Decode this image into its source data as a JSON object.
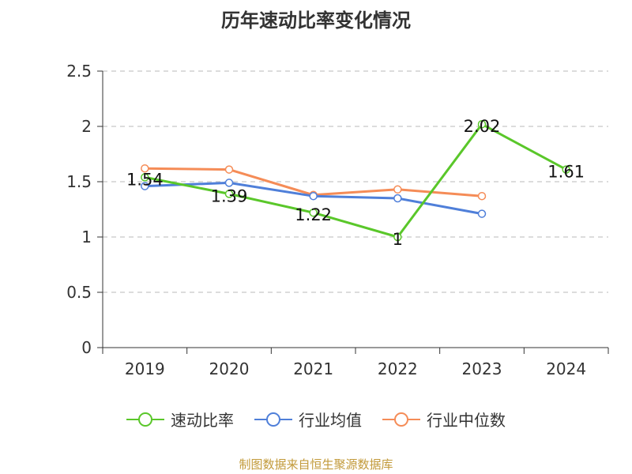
{
  "chart_data": {
    "type": "line",
    "title": "历年速动比率变化情况",
    "categories": [
      "2019",
      "2020",
      "2021",
      "2022",
      "2023",
      "2024"
    ],
    "ylim": [
      0,
      2.5
    ],
    "yticks": [
      "0",
      "0.5",
      "1",
      "1.5",
      "2",
      "2.5"
    ],
    "grid": true,
    "legend_position": "bottom",
    "series": [
      {
        "name": "速动比率",
        "color": "#5ac72a",
        "values": [
          1.54,
          1.39,
          1.22,
          1,
          2.02,
          1.61
        ],
        "labels": [
          "1.54",
          "1.39",
          "1.22",
          "1",
          "2.02",
          "1.61"
        ]
      },
      {
        "name": "行业均值",
        "color": "#4f7fd9",
        "values": [
          1.46,
          1.49,
          1.37,
          1.35,
          1.21,
          null
        ]
      },
      {
        "name": "行业中位数",
        "color": "#f58c57",
        "values": [
          1.62,
          1.61,
          1.38,
          1.43,
          1.37,
          null
        ]
      }
    ]
  },
  "footer": {
    "source": "制图数据来自恒生聚源数据库",
    "color": "#c29a3a"
  }
}
